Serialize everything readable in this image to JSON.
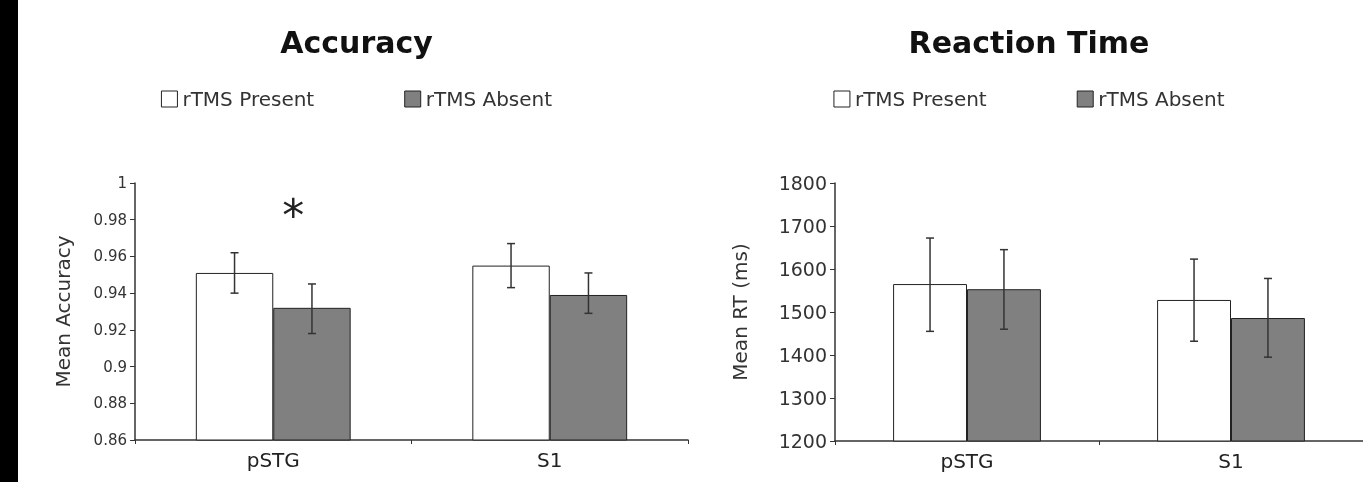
{
  "chart_data": [
    {
      "type": "bar",
      "title": "Accuracy",
      "ylabel": "Mean Accuracy",
      "categories": [
        "pSTG",
        "S1"
      ],
      "series": [
        {
          "name": "rTMS Present",
          "color": "#ffffff",
          "values": [
            0.951,
            0.955
          ],
          "errors": [
            [
              0.94,
              0.962
            ],
            [
              0.943,
              0.967
            ]
          ]
        },
        {
          "name": "rTMS Absent",
          "color": "#808080",
          "values": [
            0.932,
            0.939
          ],
          "errors": [
            [
              0.918,
              0.945
            ],
            [
              0.929,
              0.951
            ]
          ]
        }
      ],
      "ylim": [
        0.86,
        1
      ],
      "yticks": [
        0.86,
        0.88,
        0.9,
        0.92,
        0.94,
        0.96,
        0.98,
        1
      ],
      "grid": false,
      "legend": "top",
      "annotations": [
        "*"
      ]
    },
    {
      "type": "bar",
      "title": "Reaction Time",
      "ylabel": "Mean RT (ms)",
      "categories": [
        "pSTG",
        "S1"
      ],
      "series": [
        {
          "name": "rTMS Present",
          "color": "#ffffff",
          "values": [
            1565,
            1528
          ],
          "errors": [
            [
              1455,
              1672
            ],
            [
              1432,
              1623
            ]
          ]
        },
        {
          "name": "rTMS Absent",
          "color": "#808080",
          "values": [
            1553,
            1486
          ],
          "errors": [
            [
              1460,
              1645
            ],
            [
              1395,
              1578
            ]
          ]
        }
      ],
      "ylim": [
        1200,
        1800
      ],
      "yticks": [
        1200,
        1300,
        1400,
        1500,
        1600,
        1700,
        1800
      ],
      "grid": false,
      "legend": "top"
    }
  ]
}
